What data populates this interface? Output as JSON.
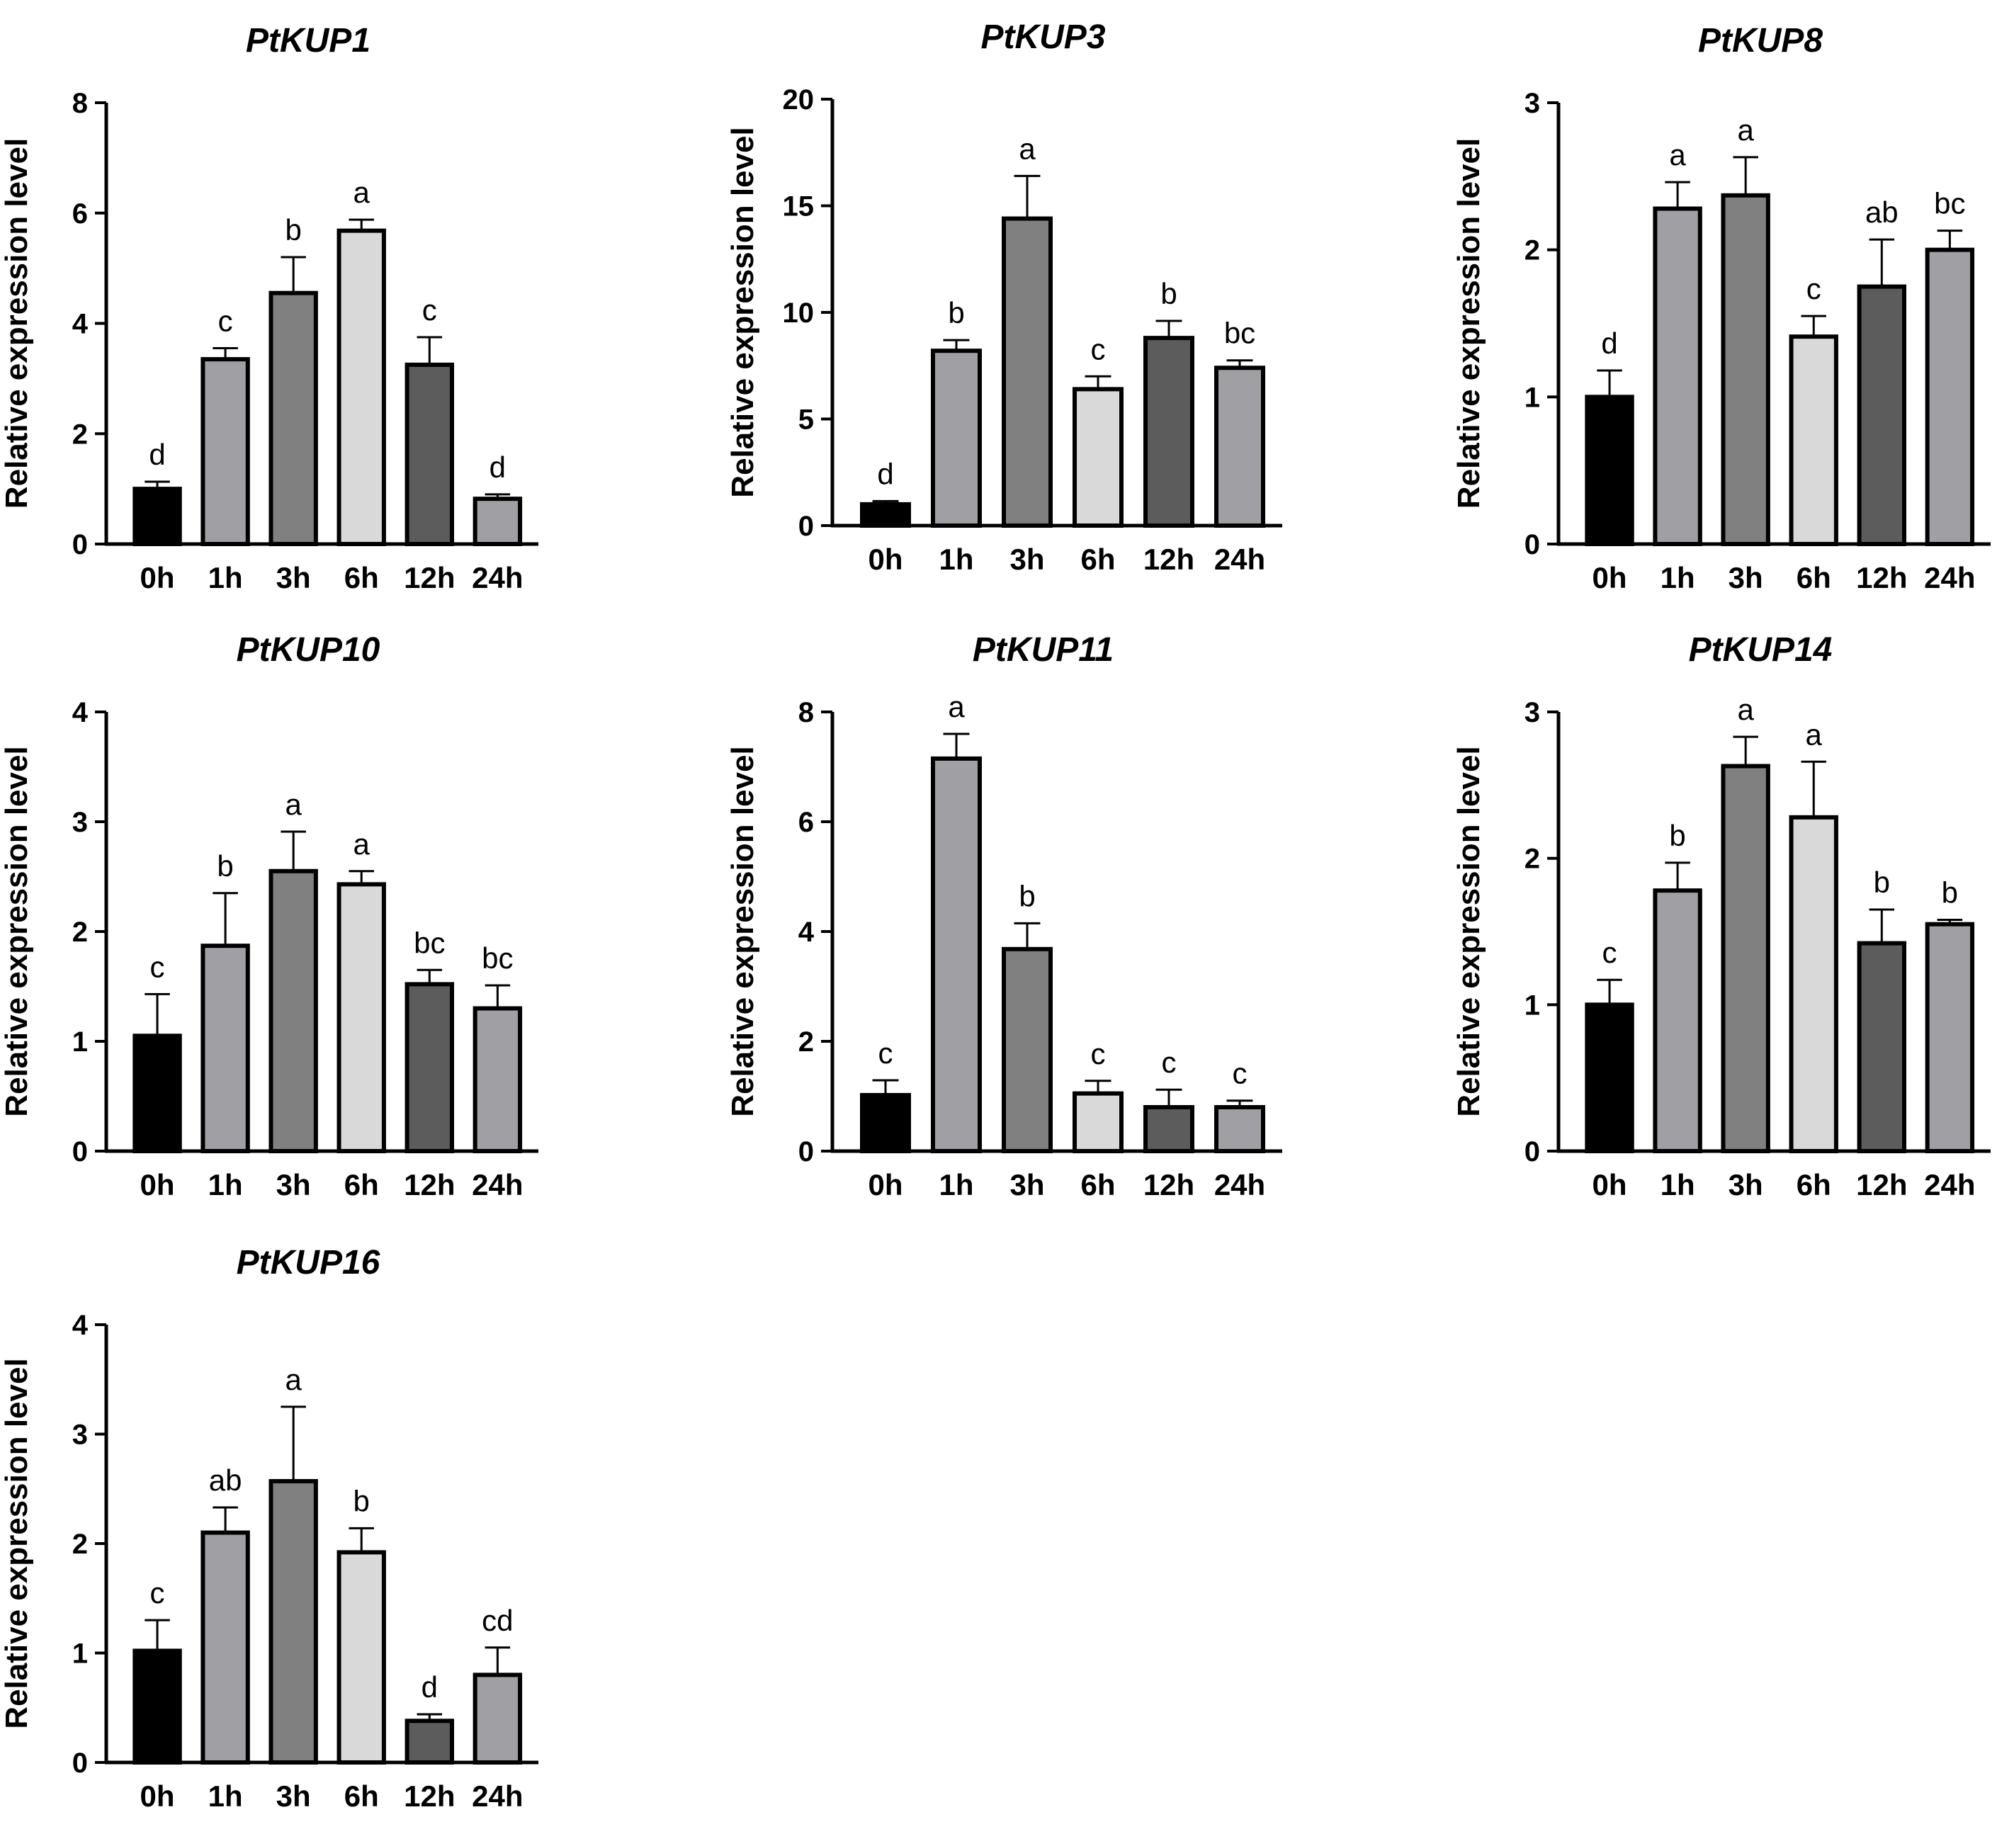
{
  "chart_data": [
    {
      "type": "bar",
      "title": "PtKUP1",
      "ylabel": "Relative expression level",
      "categories": [
        "0h",
        "1h",
        "3h",
        "6h",
        "12h",
        "24h"
      ],
      "values": [
        1.0,
        3.35,
        4.55,
        5.68,
        3.25,
        0.82
      ],
      "errors": [
        0.13,
        0.2,
        0.65,
        0.2,
        0.5,
        0.08
      ],
      "labels": [
        "d",
        "c",
        "b",
        "a",
        "c",
        "d"
      ],
      "ylim": [
        0,
        8
      ],
      "yticks": [
        "0",
        "2",
        "4",
        "6",
        "8"
      ],
      "ytick_values": [
        0,
        2,
        4,
        6,
        8
      ]
    },
    {
      "type": "bar",
      "title": "PtKUP3",
      "ylabel": "Relative expression level",
      "categories": [
        "0h",
        "1h",
        "3h",
        "6h",
        "12h",
        "24h"
      ],
      "values": [
        1.0,
        8.2,
        14.4,
        6.4,
        8.8,
        7.4
      ],
      "errors": [
        0.15,
        0.5,
        2.0,
        0.6,
        0.8,
        0.35
      ],
      "labels": [
        "d",
        "b",
        "a",
        "c",
        "b",
        "bc"
      ],
      "ylim": [
        0,
        20
      ],
      "yticks": [
        "0",
        "5",
        "10",
        "15",
        "20"
      ],
      "ytick_values": [
        0,
        5,
        10,
        15,
        20
      ]
    },
    {
      "type": "bar",
      "title": "PtKUP8",
      "ylabel": "Relative expression level",
      "categories": [
        "0h",
        "1h",
        "3h",
        "6h",
        "12h",
        "24h"
      ],
      "values": [
        1.0,
        2.28,
        2.37,
        1.41,
        1.75,
        2.0
      ],
      "errors": [
        0.18,
        0.18,
        0.26,
        0.14,
        0.32,
        0.13
      ],
      "labels": [
        "d",
        "a",
        "a",
        "c",
        "ab",
        "bc"
      ],
      "ylim": [
        0,
        3
      ],
      "yticks": [
        "0",
        "1",
        "2",
        "3"
      ],
      "ytick_values": [
        0,
        1,
        2,
        3
      ]
    },
    {
      "type": "bar",
      "title": "PtKUP10",
      "ylabel": "Relative expression level",
      "categories": [
        "0h",
        "1h",
        "3h",
        "6h",
        "12h",
        "24h"
      ],
      "values": [
        1.05,
        1.87,
        2.55,
        2.43,
        1.52,
        1.3
      ],
      "errors": [
        0.38,
        0.48,
        0.36,
        0.12,
        0.13,
        0.21
      ],
      "labels": [
        "c",
        "b",
        "a",
        "a",
        "bc",
        "bc"
      ],
      "ylim": [
        0,
        4
      ],
      "yticks": [
        "0",
        "1",
        "2",
        "3",
        "4"
      ],
      "ytick_values": [
        0,
        1,
        2,
        3,
        4
      ]
    },
    {
      "type": "bar",
      "title": "PtKUP11",
      "ylabel": "Relative expression level",
      "categories": [
        "0h",
        "1h",
        "3h",
        "6h",
        "12h",
        "24h"
      ],
      "values": [
        1.02,
        7.15,
        3.68,
        1.05,
        0.8,
        0.8
      ],
      "errors": [
        0.27,
        0.45,
        0.47,
        0.23,
        0.32,
        0.12
      ],
      "labels": [
        "c",
        "a",
        "b",
        "c",
        "c",
        "c"
      ],
      "ylim": [
        0,
        8
      ],
      "yticks": [
        "0",
        "2",
        "4",
        "6",
        "8"
      ],
      "ytick_values": [
        0,
        2,
        4,
        6,
        8
      ]
    },
    {
      "type": "bar",
      "title": "PtKUP14",
      "ylabel": "Relative expression level",
      "categories": [
        "0h",
        "1h",
        "3h",
        "6h",
        "12h",
        "24h"
      ],
      "values": [
        1.0,
        1.78,
        2.63,
        2.28,
        1.42,
        1.55
      ],
      "errors": [
        0.17,
        0.19,
        0.2,
        0.38,
        0.23,
        0.03
      ],
      "labels": [
        "c",
        "b",
        "a",
        "a",
        "b",
        "b"
      ],
      "ylim": [
        0,
        3
      ],
      "yticks": [
        "0",
        "1",
        "2",
        "3"
      ],
      "ytick_values": [
        0,
        1,
        2,
        3
      ]
    },
    {
      "type": "bar",
      "title": "PtKUP16",
      "ylabel": "Relative expression level",
      "categories": [
        "0h",
        "1h",
        "3h",
        "6h",
        "12h",
        "24h"
      ],
      "values": [
        1.02,
        2.1,
        2.57,
        1.92,
        0.38,
        0.8
      ],
      "errors": [
        0.28,
        0.23,
        0.68,
        0.22,
        0.06,
        0.25
      ],
      "labels": [
        "c",
        "ab",
        "a",
        "b",
        "d",
        "cd"
      ],
      "ylim": [
        0,
        4
      ],
      "yticks": [
        "0",
        "1",
        "2",
        "3",
        "4"
      ],
      "ytick_values": [
        0,
        1,
        2,
        3,
        4
      ]
    }
  ],
  "colors": {
    "0h": "#000000",
    "1h": "#a0a0a4",
    "3h": "#808080",
    "6h": "#d9d9d9",
    "12h": "#5c5c5c",
    "24h": "#a0a0a4",
    "order": [
      "#000000",
      "#a0a0a4",
      "#808080",
      "#d9d9d9",
      "#5c5c5c",
      "#a0a0a4"
    ]
  }
}
